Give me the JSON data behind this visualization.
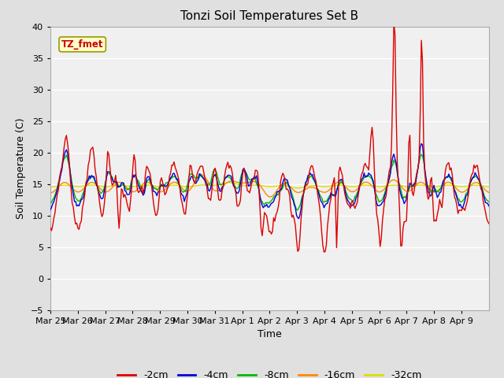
{
  "title": "Tonzi Soil Temperatures Set B",
  "xlabel": "Time",
  "ylabel": "Soil Temperature (C)",
  "ylim": [
    -5,
    40
  ],
  "yticks": [
    -5,
    0,
    5,
    10,
    15,
    20,
    25,
    30,
    35,
    40
  ],
  "xtick_labels": [
    "Mar 25",
    "Mar 26",
    "Mar 27",
    "Mar 28",
    "Mar 29",
    "Mar 30",
    "Mar 31",
    "Apr 1",
    "Apr 2",
    "Apr 3",
    "Apr 4",
    "Apr 5",
    "Apr 6",
    "Apr 7",
    "Apr 8",
    "Apr 9"
  ],
  "annotation_text": "TZ_fmet",
  "annotation_color": "#cc0000",
  "annotation_bg": "#ffffcc",
  "annotation_edge": "#999900",
  "line_colors": {
    "-2cm": "#dd0000",
    "-4cm": "#0000dd",
    "-8cm": "#00bb00",
    "-16cm": "#ff8800",
    "-32cm": "#dddd00"
  },
  "legend_labels": [
    "-2cm",
    "-4cm",
    "-8cm",
    "-16cm",
    "-32cm"
  ],
  "fig_bg": "#e0e0e0",
  "plot_bg": "#f0f0f0",
  "grid_color": "#ffffff",
  "spine_color": "#aaaaaa"
}
